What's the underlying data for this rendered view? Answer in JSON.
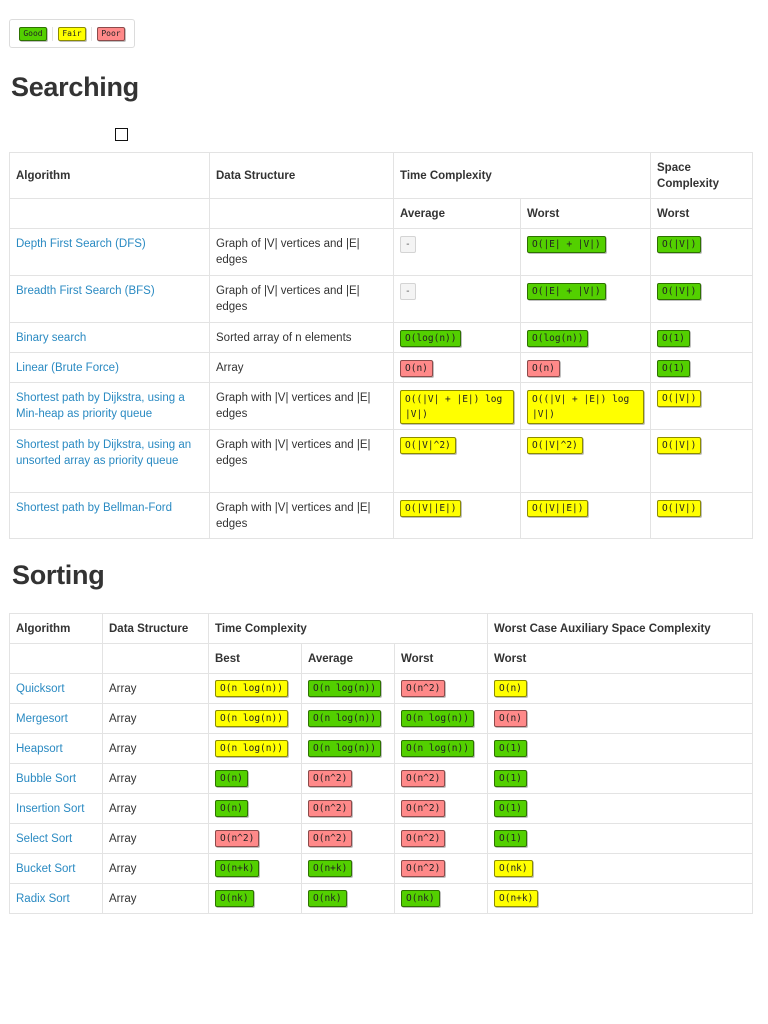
{
  "legend": {
    "good": "Good",
    "fair": "Fair",
    "poor": "Poor",
    "colors": {
      "good": "#53d000",
      "fair": "#ffff00",
      "poor": "#ff8989"
    }
  },
  "searching": {
    "heading": "Searching",
    "headers": {
      "algorithm": "Algorithm",
      "data_structure": "Data Structure",
      "time_complexity": "Time Complexity",
      "space_complexity": "Space Complexity",
      "average": "Average",
      "worst": "Worst",
      "space_worst": "Worst"
    },
    "rows": [
      {
        "name": "Depth First Search (DFS)",
        "ds": "Graph of |V| vertices and |E| edges",
        "avg": "-",
        "avg_class": "none",
        "worst": "O(|E| + |V|)",
        "worst_class": "good",
        "space": "O(|V|)",
        "space_class": "good"
      },
      {
        "name": "Breadth First Search (BFS)",
        "ds": "Graph of |V| vertices and |E| edges",
        "avg": "-",
        "avg_class": "none",
        "worst": "O(|E| + |V|)",
        "worst_class": "good",
        "space": "O(|V|)",
        "space_class": "good"
      },
      {
        "name": "Binary search",
        "ds": "Sorted array of n elements",
        "avg": "O(log(n))",
        "avg_class": "good",
        "worst": "O(log(n))",
        "worst_class": "good",
        "space": "O(1)",
        "space_class": "good"
      },
      {
        "name": "Linear (Brute Force)",
        "ds": "Array",
        "avg": "O(n)",
        "avg_class": "poor",
        "worst": "O(n)",
        "worst_class": "poor",
        "space": "O(1)",
        "space_class": "good"
      },
      {
        "name": "Shortest path by Dijkstra, using a Min-heap as priority queue",
        "ds": "Graph with |V| vertices and |E| edges",
        "avg": "O((|V| + |E|) log |V|)",
        "avg_class": "fair",
        "worst": "O((|V| + |E|) log |V|)",
        "worst_class": "fair",
        "space": "O(|V|)",
        "space_class": "fair"
      },
      {
        "name": "Shortest path by Dijkstra, using an unsorted array as priority queue",
        "ds": "Graph with |V| vertices and |E| edges",
        "avg": "O(|V|^2)",
        "avg_class": "fair",
        "worst": "O(|V|^2)",
        "worst_class": "fair",
        "space": "O(|V|)",
        "space_class": "fair"
      },
      {
        "name": "Shortest path by Bellman-Ford",
        "ds": "Graph with |V| vertices and |E| edges",
        "avg": "O(|V||E|)",
        "avg_class": "fair",
        "worst": "O(|V||E|)",
        "worst_class": "fair",
        "space": "O(|V|)",
        "space_class": "fair"
      }
    ]
  },
  "sorting": {
    "heading": "Sorting",
    "headers": {
      "algorithm": "Algorithm",
      "data_structure": "Data Structure",
      "time_complexity": "Time Complexity",
      "space_complexity": "Worst Case Auxiliary Space Complexity",
      "best": "Best",
      "average": "Average",
      "worst": "Worst",
      "space_worst": "Worst"
    },
    "rows": [
      {
        "name": "Quicksort",
        "ds": "Array",
        "best": "O(n log(n))",
        "best_class": "fair",
        "avg": "O(n log(n))",
        "avg_class": "good",
        "worst": "O(n^2)",
        "worst_class": "poor",
        "space": "O(n)",
        "space_class": "fair"
      },
      {
        "name": "Mergesort",
        "ds": "Array",
        "best": "O(n log(n))",
        "best_class": "fair",
        "avg": "O(n log(n))",
        "avg_class": "good",
        "worst": "O(n log(n))",
        "worst_class": "good",
        "space": "O(n)",
        "space_class": "poor"
      },
      {
        "name": "Heapsort",
        "ds": "Array",
        "best": "O(n log(n))",
        "best_class": "fair",
        "avg": "O(n log(n))",
        "avg_class": "good",
        "worst": "O(n log(n))",
        "worst_class": "good",
        "space": "O(1)",
        "space_class": "good"
      },
      {
        "name": "Bubble Sort",
        "ds": "Array",
        "best": "O(n)",
        "best_class": "good",
        "avg": "O(n^2)",
        "avg_class": "poor",
        "worst": "O(n^2)",
        "worst_class": "poor",
        "space": "O(1)",
        "space_class": "good"
      },
      {
        "name": "Insertion Sort",
        "ds": "Array",
        "best": "O(n)",
        "best_class": "good",
        "avg": "O(n^2)",
        "avg_class": "poor",
        "worst": "O(n^2)",
        "worst_class": "poor",
        "space": "O(1)",
        "space_class": "good"
      },
      {
        "name": "Select Sort",
        "ds": "Array",
        "best": "O(n^2)",
        "best_class": "poor",
        "avg": "O(n^2)",
        "avg_class": "poor",
        "worst": "O(n^2)",
        "worst_class": "poor",
        "space": "O(1)",
        "space_class": "good"
      },
      {
        "name": "Bucket Sort",
        "ds": "Array",
        "best": "O(n+k)",
        "best_class": "good",
        "avg": "O(n+k)",
        "avg_class": "good",
        "worst": "O(n^2)",
        "worst_class": "poor",
        "space": "O(nk)",
        "space_class": "fair"
      },
      {
        "name": "Radix Sort",
        "ds": "Array",
        "best": "O(nk)",
        "best_class": "good",
        "avg": "O(nk)",
        "avg_class": "good",
        "worst": "O(nk)",
        "worst_class": "good",
        "space": "O(n+k)",
        "space_class": "fair"
      }
    ]
  }
}
